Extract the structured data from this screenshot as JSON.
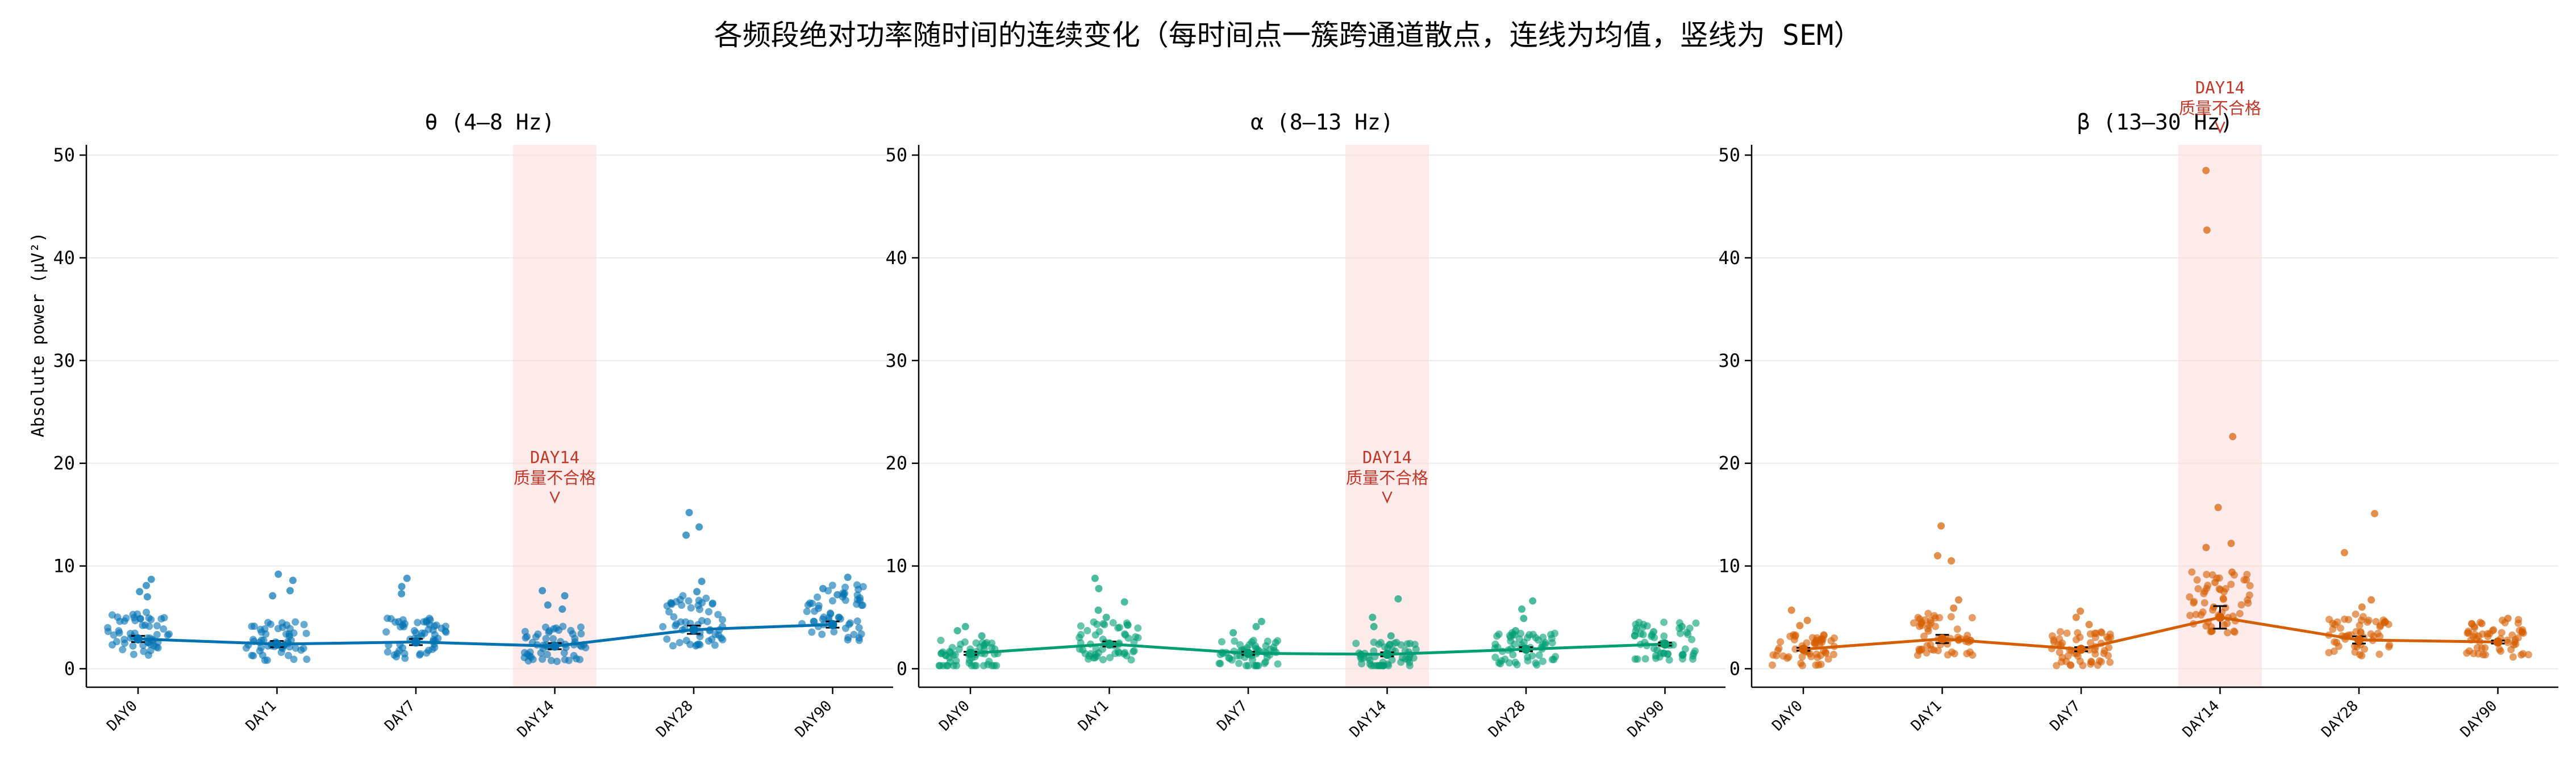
{
  "title": "各频段绝对功率随时间的连续变化（每时间点一簇跨通道散点，连线为均值，竖线为 SEM）",
  "ylabel": "Absolute power (μV²)",
  "chart_data": [
    {
      "type": "scatter",
      "title": "θ (4–8 Hz)",
      "color": "#0072b2",
      "categories": [
        "DAY0",
        "DAY1",
        "DAY7",
        "DAY14",
        "DAY28",
        "DAY90"
      ],
      "ylim": [
        -1.8,
        51
      ],
      "yticks": [
        0,
        10,
        20,
        30,
        40,
        50
      ],
      "grid": true,
      "mean": [
        2.9,
        2.4,
        2.6,
        2.2,
        3.8,
        4.3
      ],
      "sem": [
        0.3,
        0.3,
        0.3,
        0.3,
        0.4,
        0.3
      ],
      "highlight": {
        "category": "DAY14",
        "label_lines": [
          "DAY14",
          "质量不合格"
        ],
        "label_y": 20,
        "color": "#fadbd8"
      },
      "outliers": [
        {
          "x": "DAY0",
          "y": 8.7
        },
        {
          "x": "DAY0",
          "y": 8.1
        },
        {
          "x": "DAY0",
          "y": 7.5
        },
        {
          "x": "DAY0",
          "y": 7.0
        },
        {
          "x": "DAY1",
          "y": 9.2
        },
        {
          "x": "DAY1",
          "y": 8.6
        },
        {
          "x": "DAY1",
          "y": 7.6
        },
        {
          "x": "DAY1",
          "y": 7.1
        },
        {
          "x": "DAY7",
          "y": 8.8
        },
        {
          "x": "DAY7",
          "y": 8.0
        },
        {
          "x": "DAY7",
          "y": 7.3
        },
        {
          "x": "DAY14",
          "y": 7.6
        },
        {
          "x": "DAY14",
          "y": 7.1
        },
        {
          "x": "DAY14",
          "y": 6.2
        },
        {
          "x": "DAY14",
          "y": 5.8
        },
        {
          "x": "DAY28",
          "y": 15.2
        },
        {
          "x": "DAY28",
          "y": 13.8
        },
        {
          "x": "DAY28",
          "y": 13.0
        },
        {
          "x": "DAY28",
          "y": 8.5
        },
        {
          "x": "DAY28",
          "y": 7.5
        },
        {
          "x": "DAY90",
          "y": 8.9
        },
        {
          "x": "DAY90",
          "y": 7.8
        },
        {
          "x": "DAY90",
          "y": 7.2
        }
      ]
    },
    {
      "type": "scatter",
      "title": "α (8–13 Hz)",
      "color": "#009e73",
      "categories": [
        "DAY0",
        "DAY1",
        "DAY7",
        "DAY14",
        "DAY28",
        "DAY90"
      ],
      "ylim": [
        -1.8,
        51
      ],
      "yticks": [
        0,
        10,
        20,
        30,
        40,
        50
      ],
      "grid": true,
      "mean": [
        1.5,
        2.4,
        1.5,
        1.4,
        1.9,
        2.4
      ],
      "sem": [
        0.15,
        0.25,
        0.15,
        0.2,
        0.2,
        0.15
      ],
      "highlight": {
        "category": "DAY14",
        "label_lines": [
          "DAY14",
          "质量不合格"
        ],
        "label_y": 20,
        "color": "#fadbd8"
      },
      "outliers": [
        {
          "x": "DAY0",
          "y": 4.1
        },
        {
          "x": "DAY0",
          "y": 3.7
        },
        {
          "x": "DAY0",
          "y": 3.2
        },
        {
          "x": "DAY1",
          "y": 8.8
        },
        {
          "x": "DAY1",
          "y": 7.8
        },
        {
          "x": "DAY1",
          "y": 6.5
        },
        {
          "x": "DAY1",
          "y": 5.7
        },
        {
          "x": "DAY1",
          "y": 5.0
        },
        {
          "x": "DAY7",
          "y": 4.6
        },
        {
          "x": "DAY7",
          "y": 4.1
        },
        {
          "x": "DAY7",
          "y": 3.5
        },
        {
          "x": "DAY14",
          "y": 6.8
        },
        {
          "x": "DAY14",
          "y": 5.0
        },
        {
          "x": "DAY14",
          "y": 4.1
        },
        {
          "x": "DAY14",
          "y": 3.2
        },
        {
          "x": "DAY28",
          "y": 6.6
        },
        {
          "x": "DAY28",
          "y": 5.8
        },
        {
          "x": "DAY28",
          "y": 4.9
        },
        {
          "x": "DAY28",
          "y": 3.7
        },
        {
          "x": "DAY90",
          "y": 4.1
        },
        {
          "x": "DAY90",
          "y": 3.6
        }
      ]
    },
    {
      "type": "scatter",
      "title": "β (13–30 Hz)",
      "color": "#d55e00",
      "categories": [
        "DAY0",
        "DAY1",
        "DAY7",
        "DAY14",
        "DAY28",
        "DAY90"
      ],
      "ylim": [
        -1.8,
        51
      ],
      "yticks": [
        0,
        10,
        20,
        30,
        40,
        50
      ],
      "grid": true,
      "mean": [
        1.9,
        2.9,
        1.9,
        5.0,
        2.8,
        2.6
      ],
      "sem": [
        0.15,
        0.4,
        0.2,
        1.1,
        0.35,
        0.15
      ],
      "highlight": {
        "category": "DAY14",
        "label_lines": [
          "DAY14",
          "质量不合格"
        ],
        "label_y": 56,
        "color": "#fadbd8"
      },
      "outliers": [
        {
          "x": "DAY0",
          "y": 5.7
        },
        {
          "x": "DAY0",
          "y": 4.7
        },
        {
          "x": "DAY0",
          "y": 4.2
        },
        {
          "x": "DAY1",
          "y": 13.9
        },
        {
          "x": "DAY1",
          "y": 11.0
        },
        {
          "x": "DAY1",
          "y": 10.5
        },
        {
          "x": "DAY1",
          "y": 6.7
        },
        {
          "x": "DAY1",
          "y": 5.9
        },
        {
          "x": "DAY7",
          "y": 5.6
        },
        {
          "x": "DAY7",
          "y": 5.0
        },
        {
          "x": "DAY7",
          "y": 4.3
        },
        {
          "x": "DAY14",
          "y": 48.5
        },
        {
          "x": "DAY14",
          "y": 42.7
        },
        {
          "x": "DAY14",
          "y": 22.6
        },
        {
          "x": "DAY14",
          "y": 15.7
        },
        {
          "x": "DAY14",
          "y": 12.2
        },
        {
          "x": "DAY14",
          "y": 11.8
        },
        {
          "x": "DAY14",
          "y": 9.4
        },
        {
          "x": "DAY14",
          "y": 8.4
        },
        {
          "x": "DAY14",
          "y": 6.0
        },
        {
          "x": "DAY28",
          "y": 15.1
        },
        {
          "x": "DAY28",
          "y": 11.3
        },
        {
          "x": "DAY28",
          "y": 6.7
        },
        {
          "x": "DAY28",
          "y": 6.0
        },
        {
          "x": "DAY90",
          "y": 4.9
        },
        {
          "x": "DAY90",
          "y": 4.4
        }
      ]
    }
  ]
}
